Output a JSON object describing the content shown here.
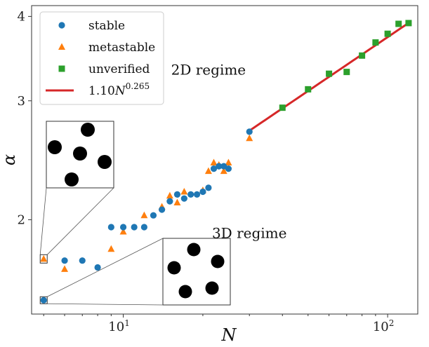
{
  "chart_data": {
    "type": "scatter",
    "xlabel": "N",
    "ylabel": "α",
    "xscale": "log",
    "yscale": "log",
    "xlim": [
      4.5,
      130
    ],
    "ylim": [
      1.45,
      4.15
    ],
    "xticks": [
      {
        "value": 10,
        "base": "10",
        "exp": "1"
      },
      {
        "value": 100,
        "base": "10",
        "exp": "2"
      }
    ],
    "yticks": [
      {
        "value": 2,
        "label": "2"
      },
      {
        "value": 3,
        "label": "3"
      },
      {
        "value": 4,
        "label": "4"
      }
    ],
    "grid": false,
    "legend_position": "top-left",
    "series": [
      {
        "name": "stable",
        "marker": "circle",
        "color": "#1f77b4",
        "points": [
          [
            5,
            1.52
          ],
          [
            6,
            1.74
          ],
          [
            7,
            1.74
          ],
          [
            8,
            1.7
          ],
          [
            9,
            1.95
          ],
          [
            10,
            1.95
          ],
          [
            11,
            1.95
          ],
          [
            12,
            1.95
          ],
          [
            13,
            2.03
          ],
          [
            14,
            2.07
          ],
          [
            15,
            2.13
          ],
          [
            16,
            2.18
          ],
          [
            17,
            2.15
          ],
          [
            18,
            2.18
          ],
          [
            19,
            2.18
          ],
          [
            20,
            2.2
          ],
          [
            21,
            2.23
          ],
          [
            22,
            2.38
          ],
          [
            23,
            2.4
          ],
          [
            24,
            2.4
          ],
          [
            25,
            2.38
          ],
          [
            30,
            2.7
          ]
        ]
      },
      {
        "name": "metastable",
        "marker": "triangle",
        "color": "#ff7f0e",
        "points": [
          [
            5,
            1.75
          ],
          [
            6,
            1.69
          ],
          [
            9,
            1.81
          ],
          [
            10,
            1.92
          ],
          [
            12,
            2.03
          ],
          [
            14,
            2.09
          ],
          [
            15,
            2.17
          ],
          [
            16,
            2.12
          ],
          [
            17,
            2.2
          ],
          [
            20,
            2.21
          ],
          [
            21,
            2.36
          ],
          [
            22,
            2.43
          ],
          [
            23,
            2.41
          ],
          [
            24,
            2.36
          ],
          [
            25,
            2.43
          ],
          [
            30,
            2.64
          ]
        ]
      },
      {
        "name": "unverified",
        "marker": "square",
        "color": "#2ca02c",
        "points": [
          [
            40,
            2.93
          ],
          [
            50,
            3.12
          ],
          [
            60,
            3.29
          ],
          [
            70,
            3.31
          ],
          [
            80,
            3.5
          ],
          [
            90,
            3.66
          ],
          [
            100,
            3.77
          ],
          [
            110,
            3.9
          ],
          [
            120,
            3.91
          ]
        ]
      }
    ],
    "fit": {
      "name": "1.10N^{0.265}",
      "color": "#d62728",
      "coefficient": 1.1,
      "exponent": 0.265,
      "x_range": [
        30,
        120
      ]
    },
    "legend": [
      {
        "label": "stable",
        "marker": "circle",
        "color": "#1f77b4"
      },
      {
        "label": "metastable",
        "marker": "triangle",
        "color": "#ff7f0e"
      },
      {
        "label": "unverified",
        "marker": "square",
        "color": "#2ca02c"
      },
      {
        "label_base": "1.10",
        "label_var": "N",
        "label_exp": "0.265",
        "marker": "line",
        "color": "#d62728"
      }
    ],
    "annotations": [
      {
        "text": "2D regime",
        "x": 21,
        "y": 3.28
      },
      {
        "text": "3D regime",
        "x": 30,
        "y": 1.88
      }
    ]
  }
}
